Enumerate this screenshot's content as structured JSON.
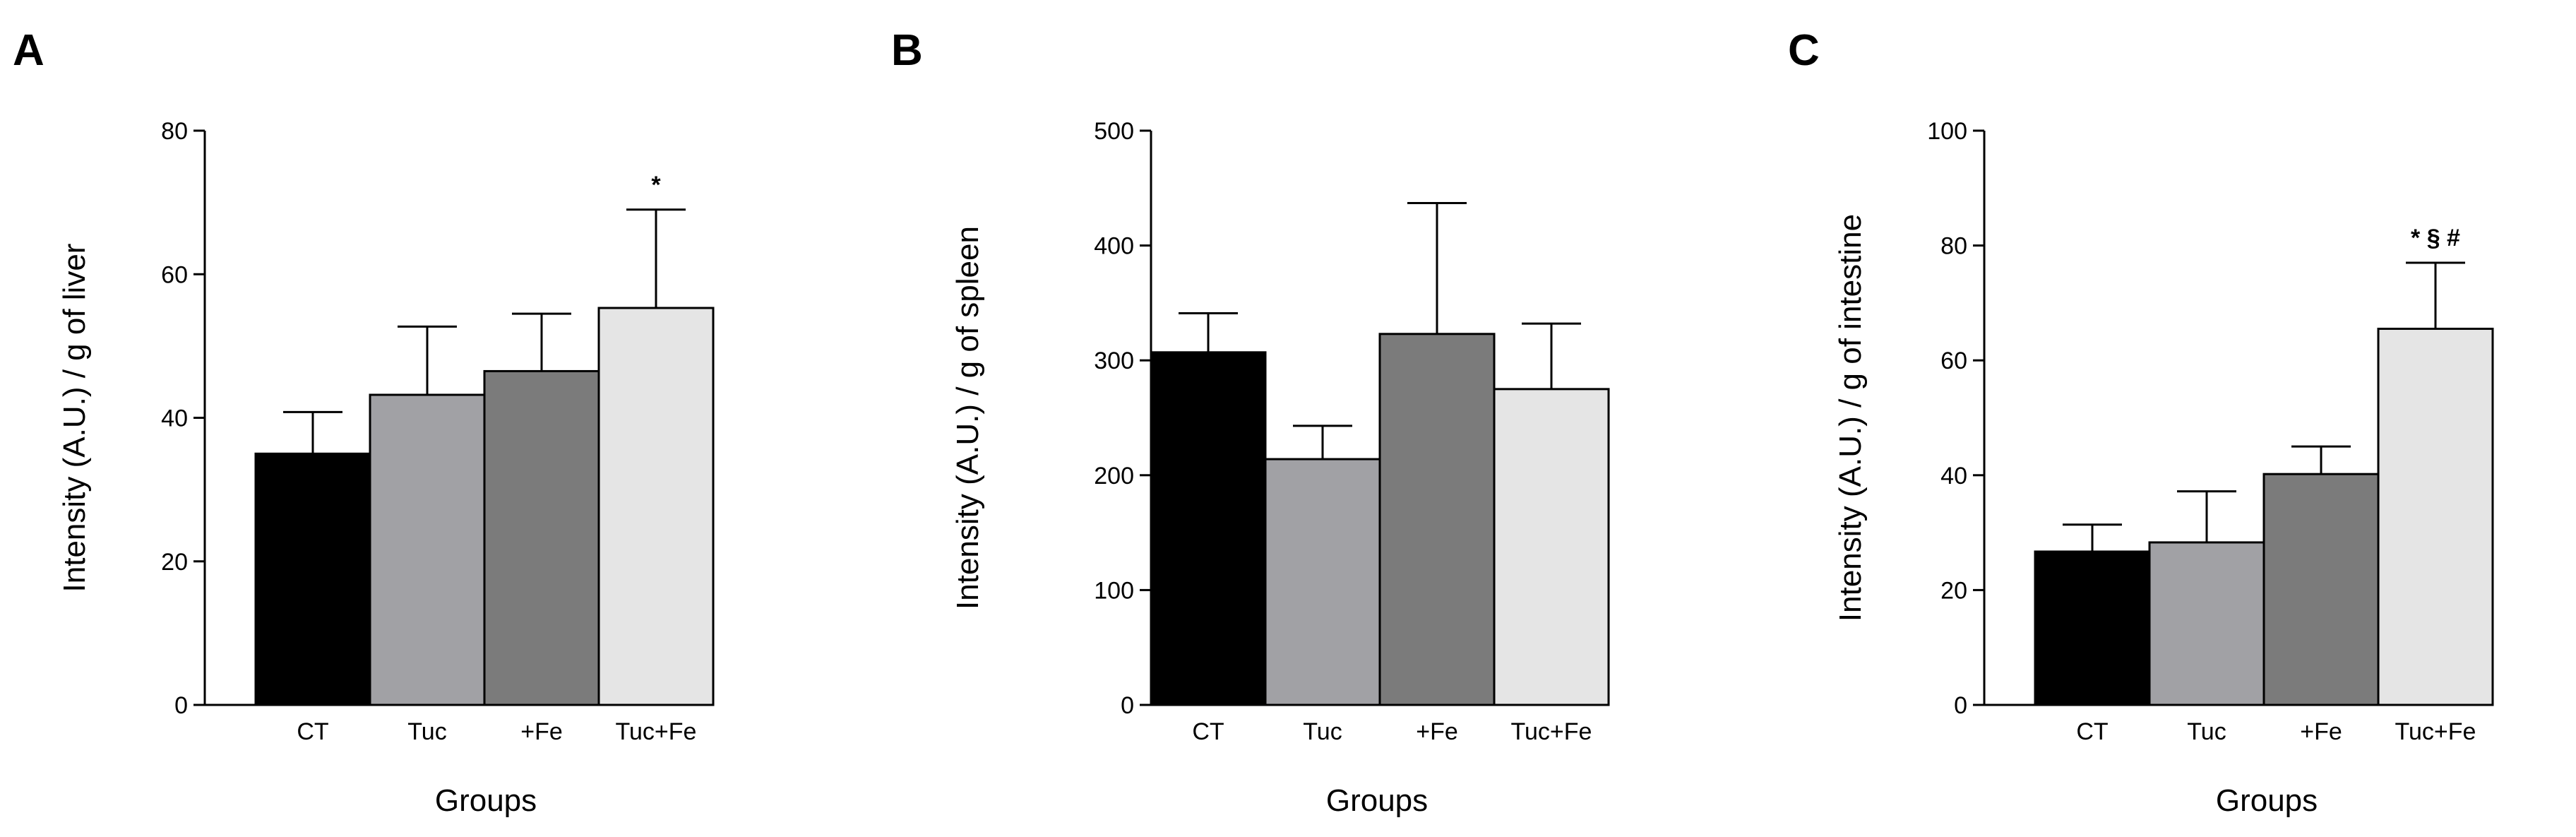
{
  "chart_data": [
    {
      "type": "bar",
      "panel_label": "A",
      "ylabel": "Intensity (A.U.) / g of liver",
      "xlabel": "Groups",
      "categories": [
        "CT",
        "Tuc",
        "+Fe",
        "Tuc+Fe"
      ],
      "values": [
        35,
        43.2,
        46.5,
        55.3
      ],
      "errors": [
        5.8,
        9.5,
        8.0,
        13.7
      ],
      "ylim": [
        0,
        80
      ],
      "yticks": [
        0,
        20,
        40,
        60,
        80
      ],
      "annotations": [
        "",
        "",
        "",
        "*"
      ]
    },
    {
      "type": "bar",
      "panel_label": "B",
      "ylabel": "Intensity (A.U.) / g of spleen",
      "xlabel": "Groups",
      "categories": [
        "CT",
        "Tuc",
        "+Fe",
        "Tuc+Fe"
      ],
      "values": [
        307,
        214,
        323,
        275
      ],
      "errors": [
        34,
        29,
        114,
        57
      ],
      "ylim": [
        0,
        500
      ],
      "yticks": [
        0,
        100,
        200,
        300,
        400,
        500
      ],
      "annotations": [
        "",
        "",
        "",
        ""
      ]
    },
    {
      "type": "bar",
      "panel_label": "C",
      "ylabel": "Intensity (A.U.) / g of intestine",
      "xlabel": "Groups",
      "categories": [
        "CT",
        "Tuc",
        "+Fe",
        "Tuc+Fe"
      ],
      "values": [
        26.7,
        28.3,
        40.2,
        65.5
      ],
      "errors": [
        4.7,
        8.9,
        4.8,
        11.5
      ],
      "ylim": [
        0,
        100
      ],
      "yticks": [
        0,
        20,
        40,
        60,
        80,
        100
      ],
      "annotations": [
        "",
        "",
        "",
        "* § #"
      ]
    }
  ],
  "colors": {
    "bars": [
      "#000000",
      "#a1a1a5",
      "#7b7b7b",
      "#e5e5e5"
    ],
    "stroke": "#000000"
  }
}
